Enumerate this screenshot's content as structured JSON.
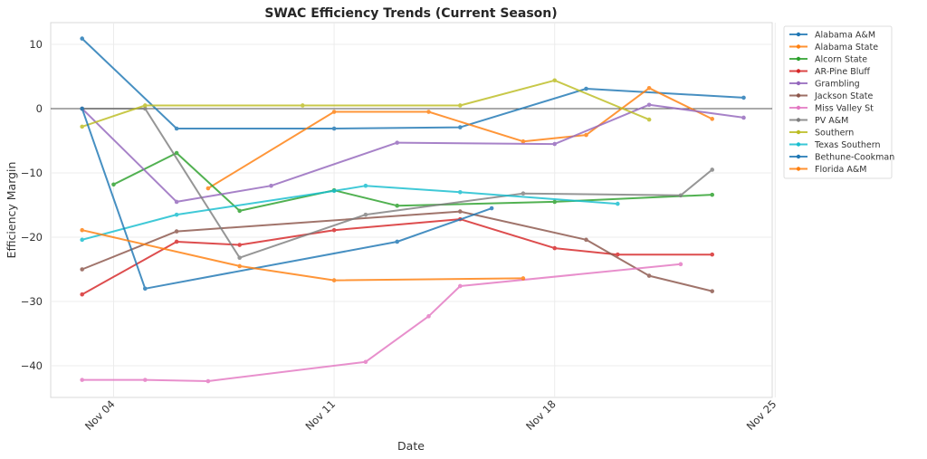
{
  "chart_data": {
    "type": "line",
    "title": "SWAC Efficiency Trends (Current Season)",
    "xlabel": "Date",
    "ylabel": "Efficiency Margin",
    "x_tick_labels": [
      "Nov 04",
      "Nov 11",
      "Nov 18",
      "Nov 25"
    ],
    "x_tick_days": [
      4,
      11,
      18,
      25
    ],
    "xlim_days": [
      2,
      25
    ],
    "y_ticks": [
      10,
      0,
      -10,
      -20,
      -30,
      -40
    ],
    "ylim": [
      -45,
      13.5
    ],
    "grid": true,
    "zero_line": true,
    "legend_position": "outside-top-right",
    "x_unit": "day of November",
    "series": [
      {
        "name": "Alabama A&M",
        "color": "#1f77b4",
        "points": [
          [
            3,
            10.9
          ],
          [
            6,
            -3.1
          ],
          [
            11,
            -3.1
          ],
          [
            15,
            -2.9
          ],
          [
            19,
            3.1
          ],
          [
            24,
            1.7
          ]
        ]
      },
      {
        "name": "Alabama State",
        "color": "#ff7f0e",
        "points": [
          [
            7,
            -12.4
          ],
          [
            11,
            -0.5
          ],
          [
            14,
            -0.5
          ],
          [
            17,
            -5.1
          ],
          [
            19,
            -4.1
          ],
          [
            21,
            3.2
          ],
          [
            23,
            -1.6
          ]
        ]
      },
      {
        "name": "Alcorn State",
        "color": "#2ca02c",
        "points": [
          [
            4,
            -11.8
          ],
          [
            6,
            -6.9
          ],
          [
            8,
            -15.9
          ],
          [
            11,
            -12.7
          ],
          [
            13,
            -15.1
          ],
          [
            18,
            -14.5
          ],
          [
            23,
            -13.4
          ]
        ]
      },
      {
        "name": "AR-Pine Bluff",
        "color": "#d62728",
        "points": [
          [
            3,
            -28.9
          ],
          [
            6,
            -20.7
          ],
          [
            8,
            -21.2
          ],
          [
            11,
            -18.9
          ],
          [
            15,
            -17.2
          ],
          [
            18,
            -21.7
          ],
          [
            20,
            -22.7
          ],
          [
            23,
            -22.7
          ]
        ]
      },
      {
        "name": "Grambling",
        "color": "#9467bd",
        "points": [
          [
            3,
            0
          ],
          [
            6,
            -14.5
          ],
          [
            9,
            -12.0
          ],
          [
            13,
            -5.3
          ],
          [
            18,
            -5.5
          ],
          [
            21,
            0.6
          ],
          [
            24,
            -1.4
          ]
        ]
      },
      {
        "name": "Jackson State",
        "color": "#8c564b",
        "points": [
          [
            3,
            -25.0
          ],
          [
            6,
            -19.1
          ],
          [
            15,
            -16.0
          ],
          [
            19,
            -20.4
          ],
          [
            21,
            -26.0
          ],
          [
            23,
            -28.4
          ]
        ]
      },
      {
        "name": "Miss Valley St",
        "color": "#e377c2",
        "points": [
          [
            3,
            -42.2
          ],
          [
            5,
            -42.2
          ],
          [
            7,
            -42.4
          ],
          [
            12,
            -39.4
          ],
          [
            14,
            -32.3
          ],
          [
            15,
            -27.6
          ],
          [
            22,
            -24.2
          ]
        ]
      },
      {
        "name": "PV A&M",
        "color": "#7f7f7f",
        "points": [
          [
            3,
            0
          ],
          [
            5,
            0
          ],
          [
            8,
            -23.2
          ],
          [
            12,
            -16.5
          ],
          [
            17,
            -13.2
          ],
          [
            22,
            -13.5
          ],
          [
            23,
            -9.5
          ]
        ]
      },
      {
        "name": "Southern",
        "color": "#bcbd22",
        "points": [
          [
            3,
            -2.8
          ],
          [
            5,
            0.5
          ],
          [
            10,
            0.5
          ],
          [
            15,
            0.5
          ],
          [
            18,
            4.4
          ],
          [
            21,
            -1.7
          ]
        ]
      },
      {
        "name": "Texas Southern",
        "color": "#17becf",
        "points": [
          [
            3,
            -20.4
          ],
          [
            6,
            -16.5
          ],
          [
            11,
            -12.8
          ],
          [
            12,
            -12.0
          ],
          [
            15,
            -13.0
          ],
          [
            20,
            -14.8
          ]
        ]
      },
      {
        "name": "Bethune-Cookman",
        "color": "#1f77b4",
        "points": [
          [
            3,
            0
          ],
          [
            5,
            -28.0
          ],
          [
            13,
            -20.7
          ],
          [
            16,
            -15.5
          ]
        ]
      },
      {
        "name": "Florida A&M",
        "color": "#ff7f0e",
        "points": [
          [
            3,
            -18.9
          ],
          [
            8,
            -24.5
          ],
          [
            11,
            -26.7
          ],
          [
            17,
            -26.4
          ]
        ]
      }
    ]
  }
}
